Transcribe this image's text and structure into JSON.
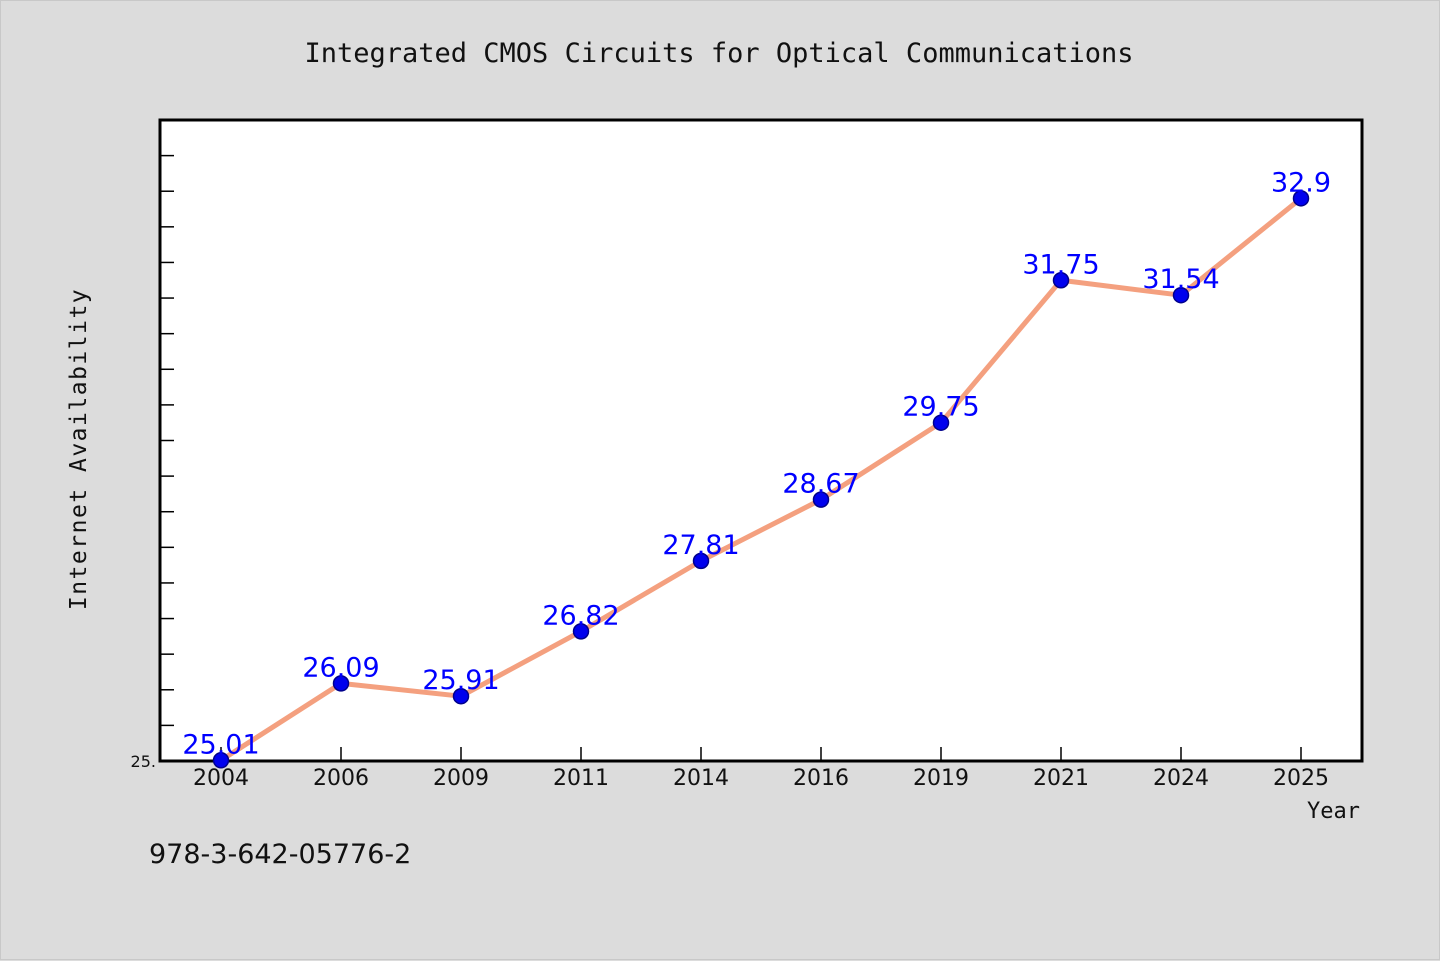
{
  "chart_data": {
    "type": "line",
    "title": "Integrated CMOS Circuits for Optical Communications",
    "xlabel": "Year",
    "ylabel": "Internet Availability",
    "categories": [
      "2004",
      "2006",
      "2009",
      "2011",
      "2014",
      "2016",
      "2019",
      "2021",
      "2024",
      "2025"
    ],
    "series": [
      {
        "values": [
          25.01,
          26.09,
          25.91,
          26.82,
          27.81,
          28.67,
          29.75,
          31.75,
          31.54,
          32.9
        ],
        "labels": [
          "25.01",
          "26.09",
          "25.91",
          "26.82",
          "27.81",
          "28.67",
          "29.75",
          "31.75",
          "31.54",
          "32.9"
        ]
      }
    ],
    "ylim": [
      25.0,
      34.0
    ],
    "y_tick_labels": [
      "25."
    ],
    "grid": false,
    "legend": "none",
    "colors": {
      "line": "#f4a07f",
      "marker": "#0000ee",
      "marker_edge": "#00008b",
      "data_label": "#0000ff",
      "background": "#dcdcdc",
      "plot_background": "#ffffff"
    }
  },
  "footer": {
    "isbn": "978-3-642-05776-2"
  }
}
